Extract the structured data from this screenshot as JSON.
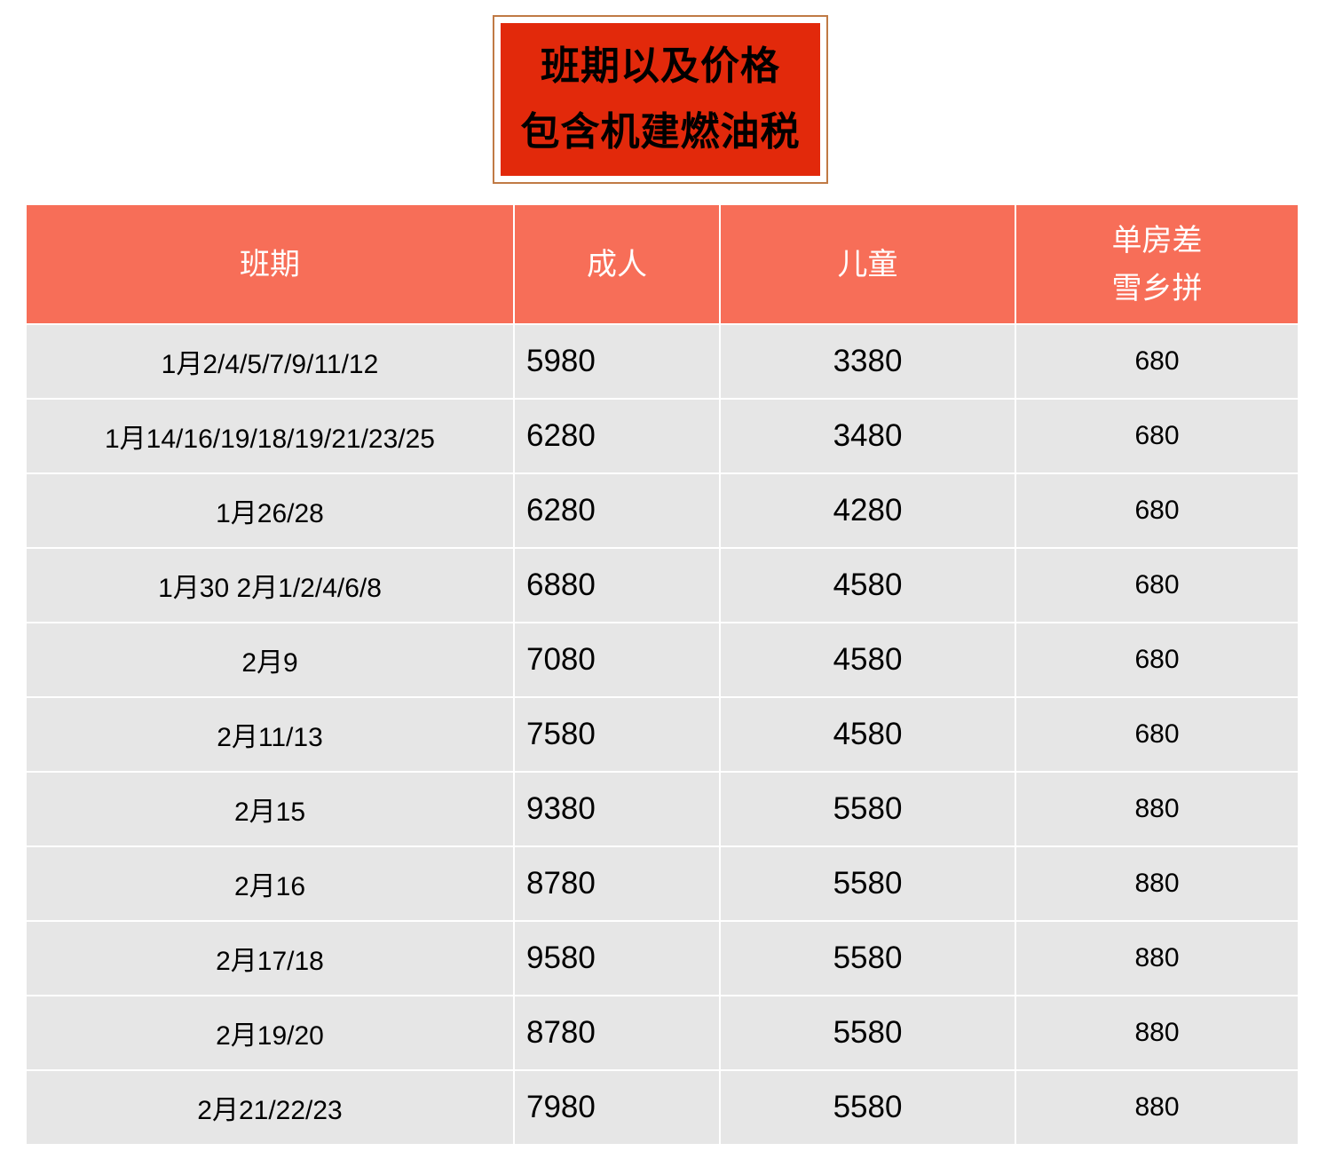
{
  "title": {
    "line1": "班期以及价格",
    "line2": "包含机建燃油税"
  },
  "colors": {
    "title_bg": "#e2290b",
    "title_border": "#c07a45",
    "header_bg": "#f76e58",
    "row_bg": "#e6e6e6"
  },
  "table": {
    "headers": [
      "班期",
      "成人",
      "儿童",
      "单房差",
      "雪乡拼"
    ],
    "rows": [
      [
        "1月2/4/5/7/9/11/12",
        "5980",
        "3380",
        "680"
      ],
      [
        "1月14/16/19/18/19/21/23/25",
        "6280",
        "3480",
        "680"
      ],
      [
        "1月26/28",
        "6280",
        "4280",
        "680"
      ],
      [
        "1月30 2月1/2/4/6/8",
        "6880",
        "4580",
        "680"
      ],
      [
        "2月9",
        "7080",
        "4580",
        "680"
      ],
      [
        "2月11/13",
        "7580",
        "4580",
        "680"
      ],
      [
        "2月15",
        "9380",
        "5580",
        "880"
      ],
      [
        "2月16",
        "8780",
        "5580",
        "880"
      ],
      [
        "2月17/18",
        "9580",
        "5580",
        "880"
      ],
      [
        "2月19/20",
        "8780",
        "5580",
        "880"
      ],
      [
        "2月21/22/23",
        "7980",
        "5580",
        "880"
      ]
    ]
  }
}
